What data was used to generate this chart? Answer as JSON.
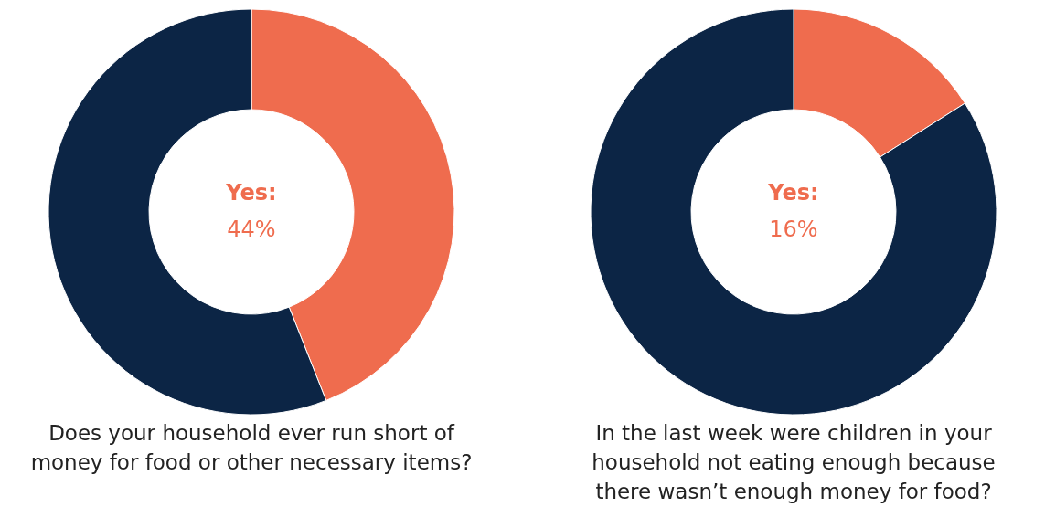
{
  "chart_data": [
    {
      "type": "donut",
      "title": "Does your household ever run short of money for food or other necessary items?",
      "categories": [
        null,
        null
      ],
      "values": [
        44,
        56
      ],
      "colors": [
        "#ef6c4e",
        "#0c2545"
      ],
      "annotations": [
        "Yes:",
        "44%"
      ]
    },
    {
      "type": "donut",
      "title": "In the last week were children in your household not eating enough because there wasn’t enough money for food?",
      "categories": [
        null,
        null
      ],
      "values": [
        16,
        84
      ],
      "colors": [
        "#ef6c4e",
        "#0c2545"
      ],
      "annotations": [
        "Yes:",
        "16%"
      ]
    }
  ]
}
